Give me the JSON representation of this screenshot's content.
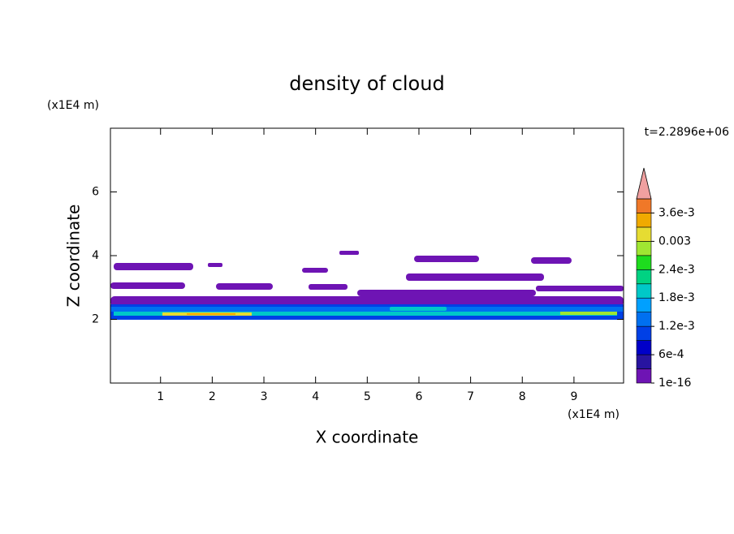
{
  "chart_data": {
    "type": "contour",
    "title": "density of cloud",
    "x_label": "X coordinate",
    "y_label": "Z coordinate",
    "x_unit": "(x1E4 m)",
    "y_unit": "(x1E4 m)",
    "time_label": "t=2.2896e+06",
    "xlim": [
      0.03,
      9.96
    ],
    "xticks": [
      1,
      2,
      3,
      4,
      5,
      6,
      7,
      8,
      9
    ],
    "ylim": [
      0,
      8
    ],
    "yticks": [
      2,
      4,
      6
    ],
    "clim": [
      1e-16,
      0.0039
    ],
    "colorbar_colors": [
      "#6e14b4",
      "#2814a0",
      "#0000c8",
      "#0040e6",
      "#0070f0",
      "#00a0ff",
      "#00c8c8",
      "#00d282",
      "#1edc1e",
      "#a0e632",
      "#e6dc32",
      "#f0aa00",
      "#f07828",
      "#fa3232"
    ],
    "colorbar_ticks": [
      {
        "value": 1e-16,
        "label": "1e-16"
      },
      {
        "value": 0.0006,
        "label": "6e-4"
      },
      {
        "value": 0.0012,
        "label": "1.2e-3"
      },
      {
        "value": 0.0018,
        "label": "1.8e-3"
      },
      {
        "value": 0.0024,
        "label": "2.4e-3"
      },
      0.003,
      {
        "value": 0.0036,
        "label": "3.6e-3"
      }
    ],
    "overflow_color": "#f0a0a0"
  }
}
